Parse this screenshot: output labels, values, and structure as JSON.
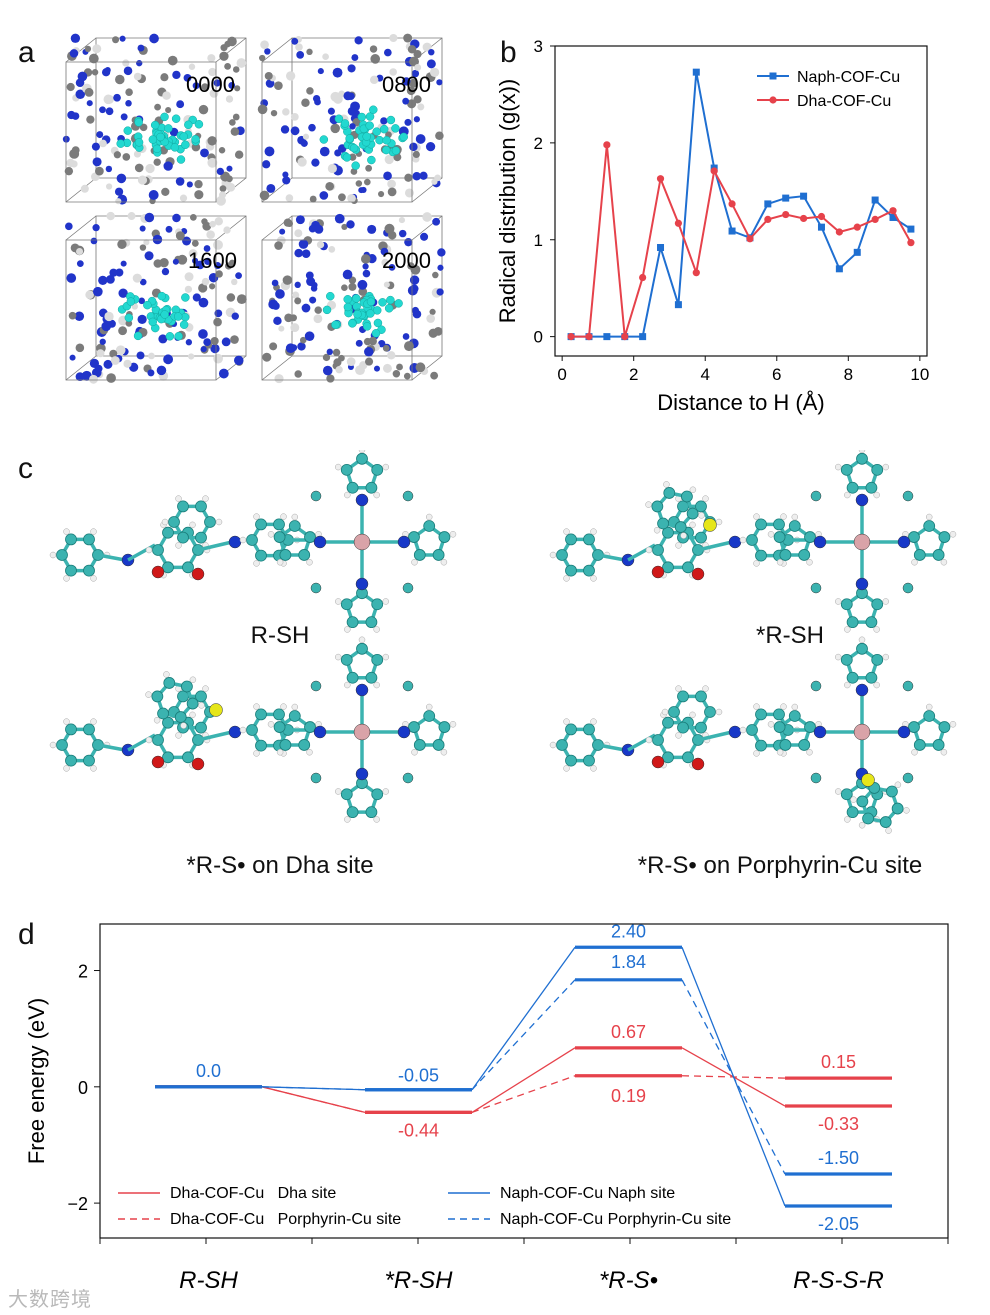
{
  "panels": {
    "a": "a",
    "b": "b",
    "c": "c",
    "d": "d"
  },
  "panel_a": {
    "frames": [
      "0000",
      "0800",
      "1600",
      "2000"
    ]
  },
  "panel_c": {
    "captions": [
      "R-SH",
      "*R-SH",
      "*R-S• on Dha site",
      "*R-S• on Porphyrin-Cu site"
    ]
  },
  "watermark": "大数跨境",
  "colors": {
    "blue": "#1f6fd1",
    "red": "#e6424b",
    "carbon": "#3bb3b0",
    "nitrogen": "#1838c8",
    "oxygen": "#d01818",
    "sulfur": "#e6e619",
    "copper": "#d9a3a8",
    "h": "#eeeeee"
  },
  "chart_data": [
    {
      "type": "line",
      "panel": "b",
      "title": "",
      "xlabel": "Distance to H (Å)",
      "ylabel": "Radical distribution (g(x))",
      "xlim": [
        -0.2,
        10.2
      ],
      "ylim": [
        -0.2,
        3
      ],
      "xticks": [
        0,
        2,
        4,
        6,
        8,
        10
      ],
      "yticks": [
        0,
        1,
        2,
        3
      ],
      "legend": "top-right",
      "series": [
        {
          "name": "Naph-COF-Cu",
          "color": "#1f6fd1",
          "marker": "square",
          "x": [
            0.25,
            0.75,
            1.25,
            1.75,
            2.25,
            2.75,
            3.25,
            3.75,
            4.25,
            4.75,
            5.25,
            5.75,
            6.25,
            6.75,
            7.25,
            7.75,
            8.25,
            8.75,
            9.25,
            9.75
          ],
          "y": [
            0,
            0,
            0,
            0,
            0,
            0.92,
            0.33,
            2.73,
            1.74,
            1.09,
            1.02,
            1.37,
            1.43,
            1.45,
            1.13,
            0.7,
            0.87,
            1.41,
            1.23,
            1.11
          ]
        },
        {
          "name": "Dha-COF-Cu",
          "color": "#e6424b",
          "marker": "circle",
          "x": [
            0.25,
            0.75,
            1.25,
            1.75,
            2.25,
            2.75,
            3.25,
            3.75,
            4.25,
            4.75,
            5.25,
            5.75,
            6.25,
            6.75,
            7.25,
            7.75,
            8.25,
            8.75,
            9.25,
            9.75
          ],
          "y": [
            0,
            0,
            1.98,
            0,
            0.61,
            1.63,
            1.17,
            0.66,
            1.71,
            1.37,
            1.01,
            1.21,
            1.26,
            1.22,
            1.24,
            1.08,
            1.13,
            1.21,
            1.3,
            0.97
          ]
        }
      ]
    },
    {
      "type": "energy-profile",
      "panel": "d",
      "ylabel": "Free energy (eV)",
      "ylim": [
        -2.6,
        2.8
      ],
      "yticks": [
        2,
        0,
        -2
      ],
      "categories": [
        "R-SH",
        "*R-SH",
        "*R-S•",
        "R-S-S-R"
      ],
      "series": [
        {
          "name": "Dha-COF-Cu   Dha site",
          "color": "#e6424b",
          "dashed": false,
          "values": [
            0.0,
            -0.44,
            0.67,
            -0.33
          ],
          "labels": [
            "",
            "-0.44",
            "0.67",
            "-0.33"
          ]
        },
        {
          "name": "Dha-COF-Cu   Porphyrin-Cu site",
          "color": "#e6424b",
          "dashed": true,
          "values": [
            0.0,
            -0.44,
            0.19,
            0.15
          ],
          "labels": [
            "",
            "",
            "0.19",
            "0.15"
          ]
        },
        {
          "name": "Naph-COF-Cu Naph site",
          "color": "#1f6fd1",
          "dashed": false,
          "values": [
            0.0,
            -0.05,
            2.4,
            -2.05
          ],
          "labels": [
            "0.0",
            "-0.05",
            "2.40",
            "-2.05"
          ]
        },
        {
          "name": "Naph-COF-Cu Porphyrin-Cu site",
          "color": "#1f6fd1",
          "dashed": true,
          "values": [
            0.0,
            -0.05,
            1.84,
            -1.5
          ],
          "labels": [
            "",
            "",
            "1.84",
            "-1.50"
          ]
        }
      ]
    }
  ]
}
